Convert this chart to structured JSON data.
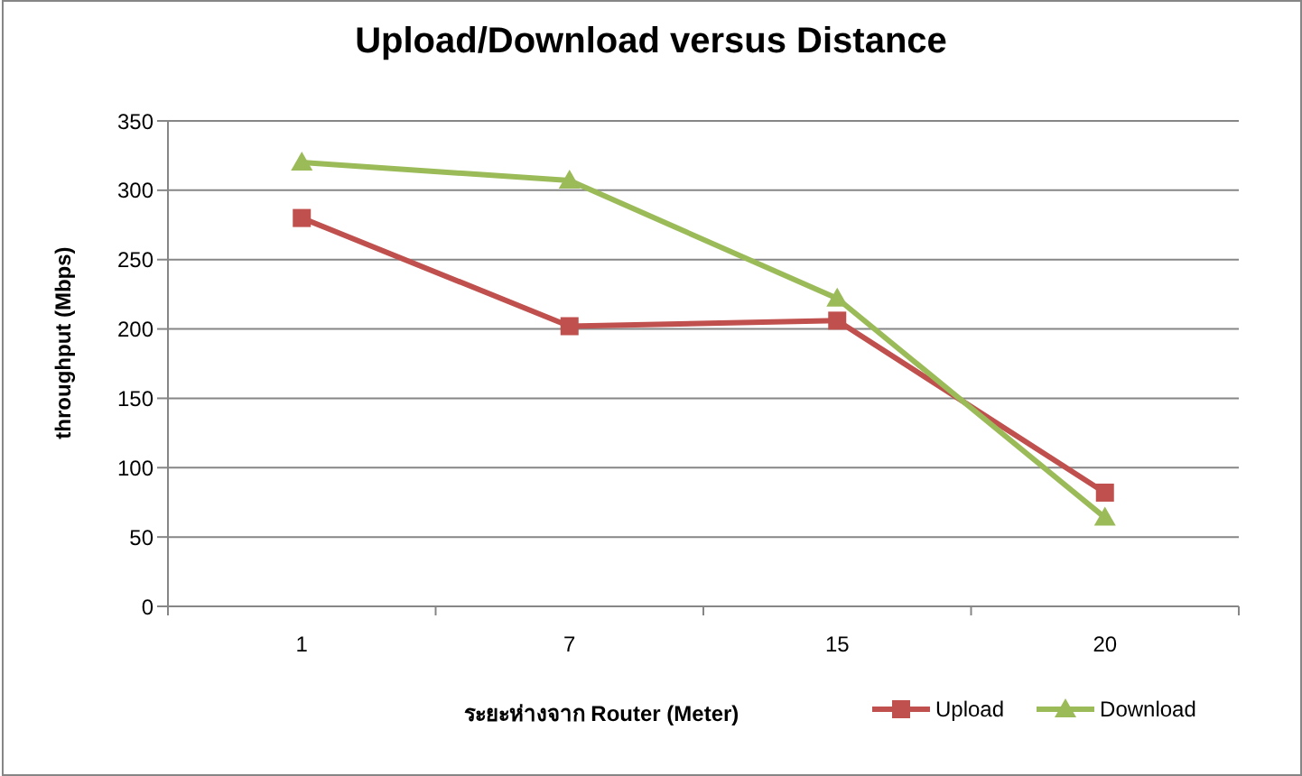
{
  "chart_data": {
    "type": "line",
    "title": "Upload/Download versus Distance",
    "xlabel": "ระยะห่างจาก Router (Meter)",
    "ylabel": "throughput (Mbps)",
    "categories": [
      "1",
      "7",
      "15",
      "20"
    ],
    "series": [
      {
        "name": "Upload",
        "color": "#c0504d",
        "marker": "square",
        "values": [
          280,
          202,
          206,
          82
        ]
      },
      {
        "name": "Download",
        "color": "#9bbb59",
        "marker": "triangle",
        "values": [
          320,
          307,
          222,
          64
        ]
      }
    ],
    "ylim": [
      0,
      350
    ],
    "yticks": [
      0,
      50,
      100,
      150,
      200,
      250,
      300,
      350
    ],
    "grid": "y",
    "legend": "bottom right"
  }
}
